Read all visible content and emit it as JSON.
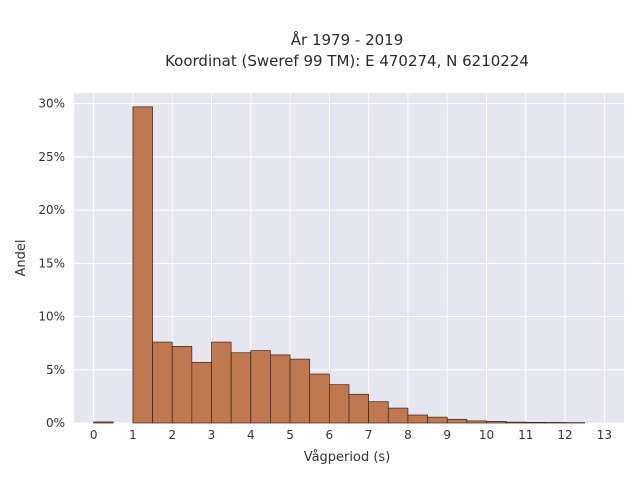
{
  "chart_data": {
    "type": "bar",
    "title": "År 1979 - 2019",
    "subtitle": "Koordinat (Sweref 99 TM): E 470274, N 6210224",
    "xlabel": "Vågperiod (s)",
    "ylabel": "Andel",
    "xlim": [
      -0.5,
      13.5
    ],
    "ylim": [
      0,
      31
    ],
    "x_ticks": [
      0,
      1,
      2,
      3,
      4,
      5,
      6,
      7,
      8,
      9,
      10,
      11,
      12,
      13
    ],
    "y_ticks": [
      0,
      5,
      10,
      15,
      20,
      25,
      30
    ],
    "y_tick_labels": [
      "0%",
      "5%",
      "10%",
      "15%",
      "20%",
      "25%",
      "30%"
    ],
    "bin_width": 0.5,
    "bins": [
      {
        "start": 0.0,
        "value": 0.1
      },
      {
        "start": 0.5,
        "value": 0.0
      },
      {
        "start": 1.0,
        "value": 29.7
      },
      {
        "start": 1.5,
        "value": 7.6
      },
      {
        "start": 2.0,
        "value": 7.2
      },
      {
        "start": 2.5,
        "value": 5.7
      },
      {
        "start": 3.0,
        "value": 7.6
      },
      {
        "start": 3.5,
        "value": 6.6
      },
      {
        "start": 4.0,
        "value": 6.8
      },
      {
        "start": 4.5,
        "value": 6.4
      },
      {
        "start": 5.0,
        "value": 6.0
      },
      {
        "start": 5.5,
        "value": 4.6
      },
      {
        "start": 6.0,
        "value": 3.6
      },
      {
        "start": 6.5,
        "value": 2.7
      },
      {
        "start": 7.0,
        "value": 2.0
      },
      {
        "start": 7.5,
        "value": 1.4
      },
      {
        "start": 8.0,
        "value": 0.75
      },
      {
        "start": 8.5,
        "value": 0.55
      },
      {
        "start": 9.0,
        "value": 0.35
      },
      {
        "start": 9.5,
        "value": 0.2
      },
      {
        "start": 10.0,
        "value": 0.15
      },
      {
        "start": 10.5,
        "value": 0.08
      },
      {
        "start": 11.0,
        "value": 0.06
      },
      {
        "start": 11.5,
        "value": 0.05
      },
      {
        "start": 12.0,
        "value": 0.04
      }
    ],
    "grid": true,
    "colors": {
      "bar_fill": "#c07850",
      "bar_stroke": "#3a2418",
      "plot_bg": "#e5e6f0",
      "grid": "#ffffff"
    }
  }
}
